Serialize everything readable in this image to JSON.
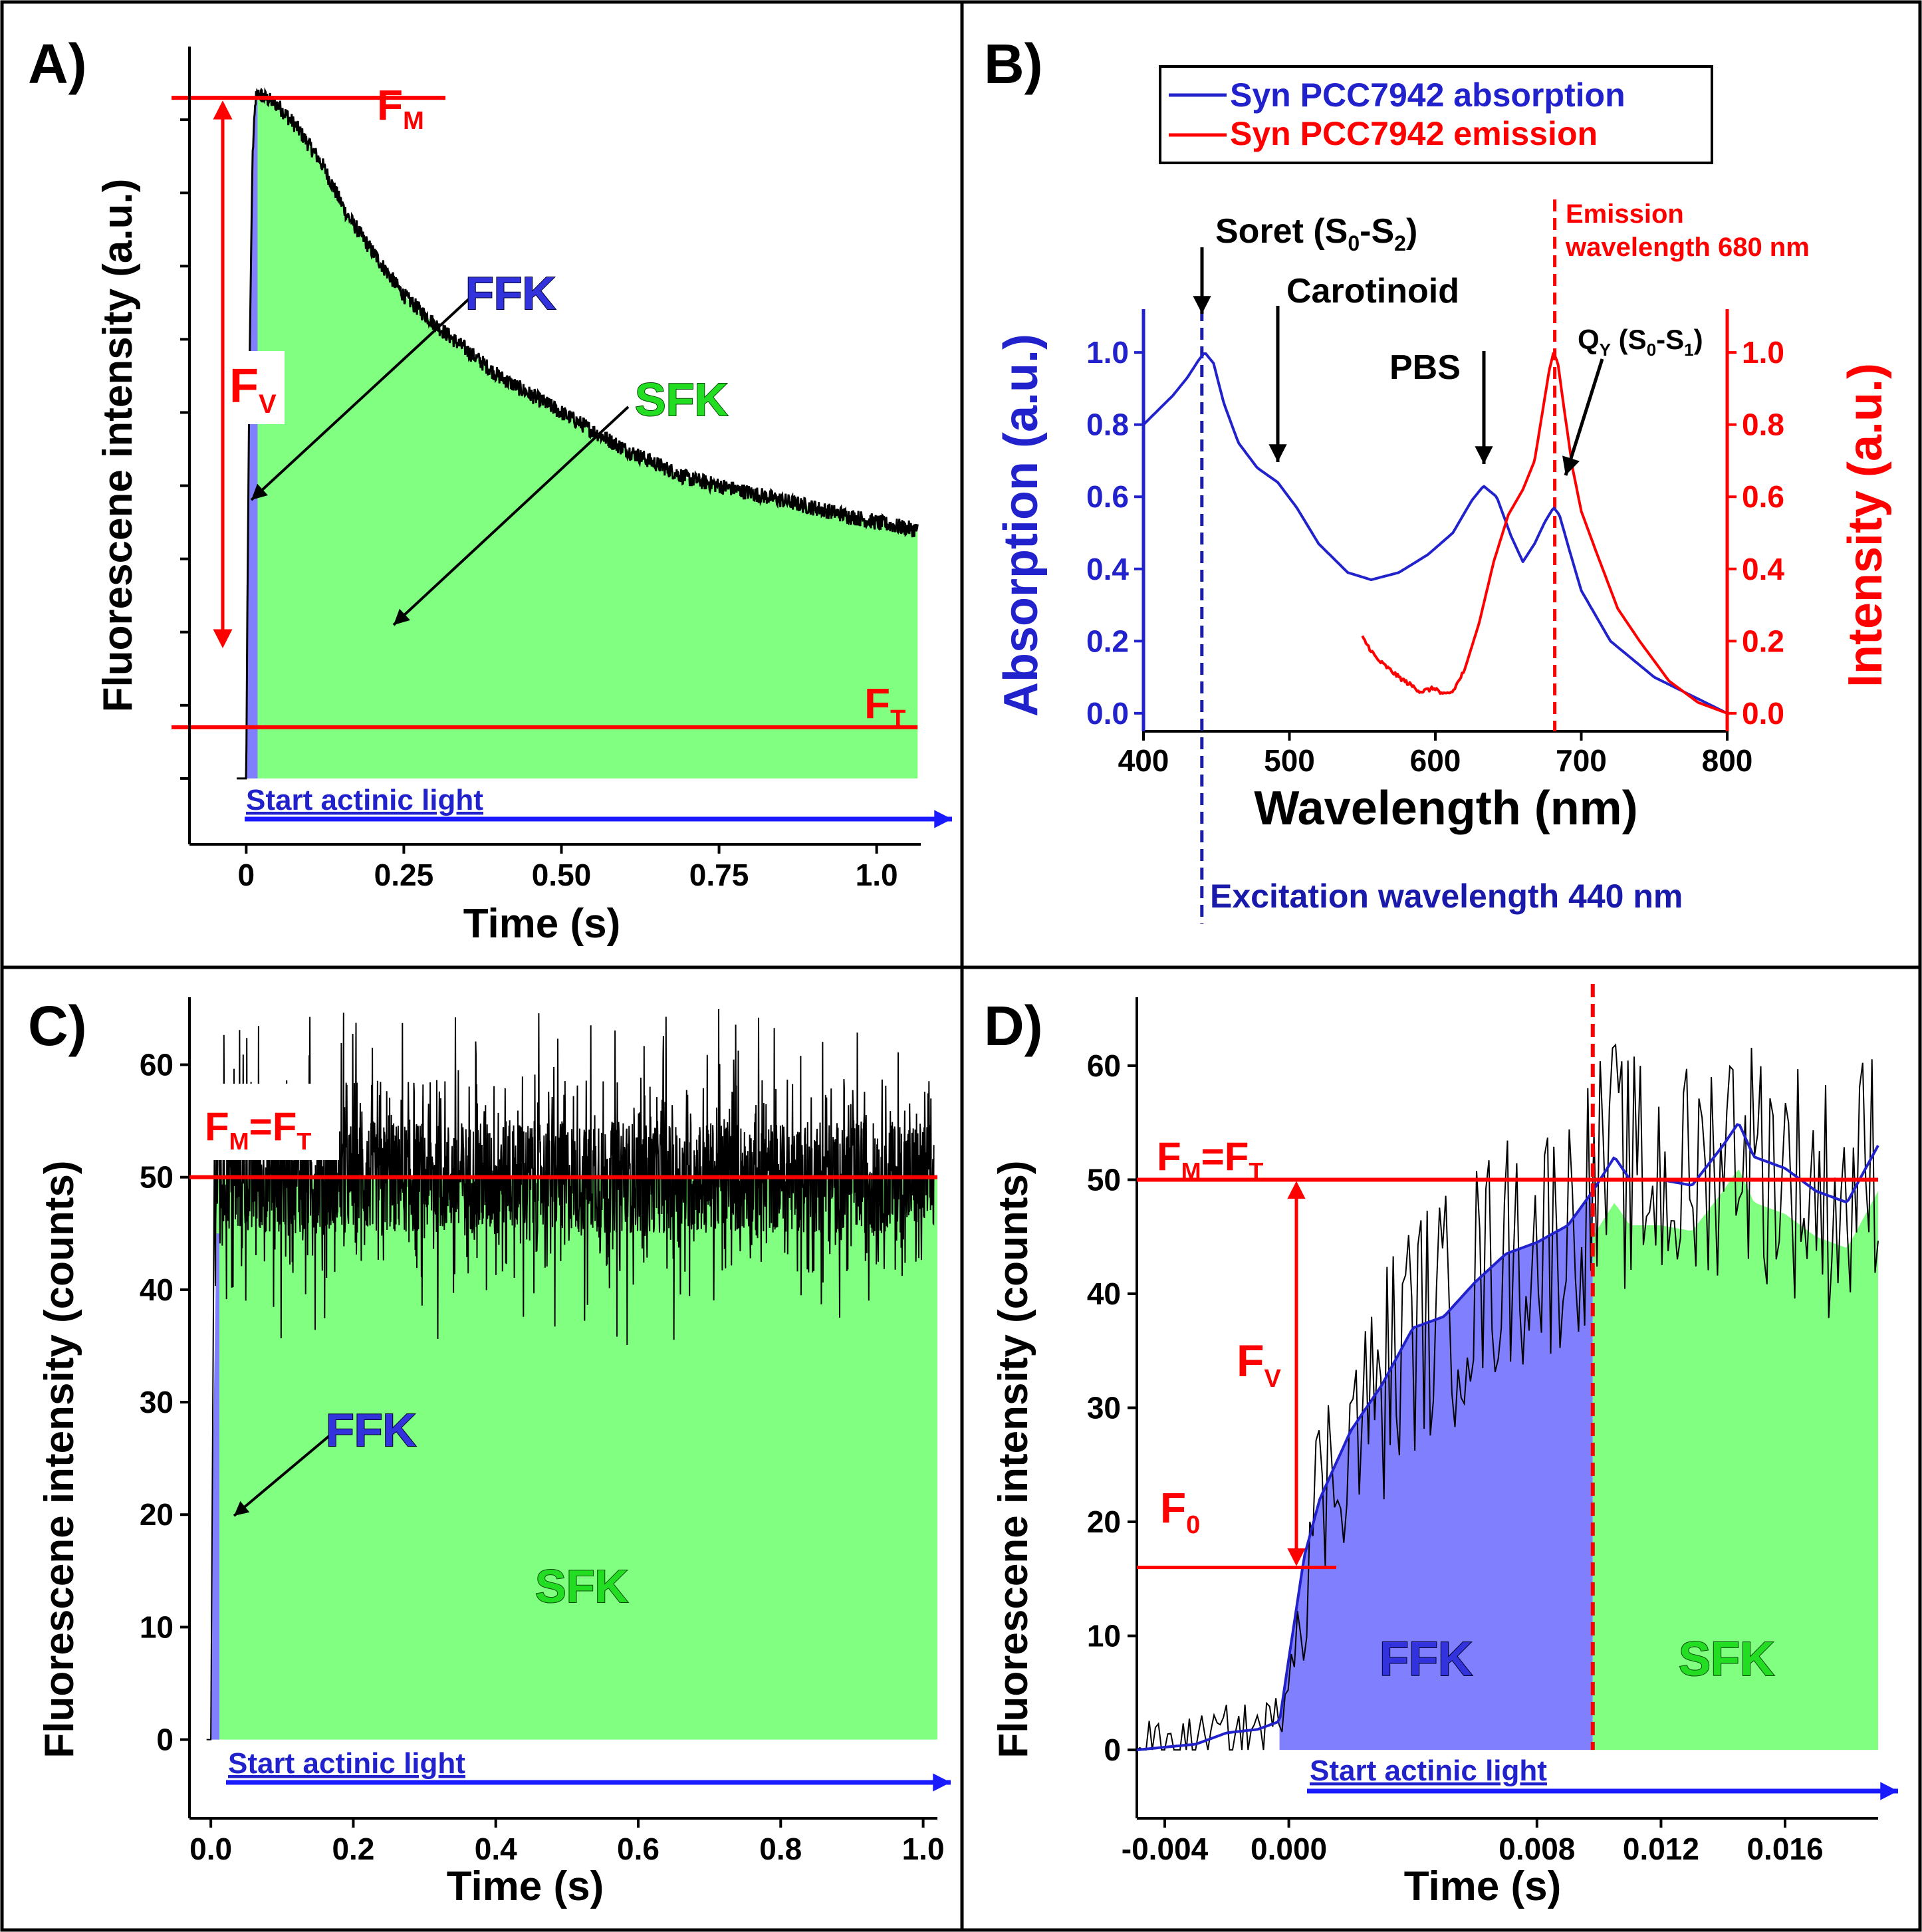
{
  "colors": {
    "red": "#ff0000",
    "blue": "#2222cc",
    "green_fill": "#80ff80",
    "ffk_fill": "#8080ff",
    "black": "#000000",
    "excite_blue": "#1a1aaa"
  },
  "chart_data": [
    {
      "panel": "A)",
      "type": "area",
      "xlabel": "Time (s)",
      "ylabel": "Fluorescene intensity (a.u.)",
      "xlim": [
        -0.09,
        1.07
      ],
      "ylim": [
        -0.09,
        1.0
      ],
      "xticks": [
        0,
        0.25,
        0.5,
        0.75,
        1.0
      ],
      "xtick_labels": [
        "0",
        "0.25",
        "0.50",
        "0.75",
        "1.0"
      ],
      "yticks_unlabeled": [
        0,
        0.1,
        0.2,
        0.3,
        0.4,
        0.5,
        0.6,
        0.7,
        0.8,
        0.9
      ],
      "series": [
        {
          "name": "fluorescence trace",
          "x": [
            -0.01,
            0,
            0.002,
            0.005,
            0.01,
            0.015,
            0.02,
            0.05,
            0.08,
            0.12,
            0.16,
            0.2,
            0.25,
            0.3,
            0.4,
            0.5,
            0.6,
            0.7,
            0.8,
            0.9,
            1.0,
            1.06
          ],
          "y": [
            0,
            0,
            0.25,
            0.55,
            0.85,
            0.93,
            0.935,
            0.92,
            0.89,
            0.84,
            0.77,
            0.72,
            0.66,
            0.62,
            0.55,
            0.5,
            0.45,
            0.41,
            0.39,
            0.37,
            0.35,
            0.34
          ]
        }
      ],
      "ffk_region": [
        0,
        0.018
      ],
      "fm_level": 0.93,
      "ft_level": 0.07,
      "labels": {
        "fm": "F",
        "fm_sub": "M",
        "ft": "F",
        "ft_sub": "T",
        "fv": "F",
        "fv_sub": "V",
        "ffk": "FFK",
        "sfk": "SFK",
        "actinic": "Start actinic light"
      }
    },
    {
      "panel": "B)",
      "type": "line",
      "xlabel": "Wavelength (nm)",
      "ylabel_left": "Absorption (a.u.)",
      "ylabel_right": "Intensity (a.u.)",
      "xlim": [
        400,
        800
      ],
      "ylim": [
        -0.05,
        1.12
      ],
      "xticks": [
        400,
        500,
        600,
        700,
        800
      ],
      "yticks": [
        0.0,
        0.2,
        0.4,
        0.6,
        0.8,
        1.0
      ],
      "ytick_labels": [
        "0.0",
        "0.2",
        "0.4",
        "0.6",
        "0.8",
        "1.0"
      ],
      "legend_position": "top",
      "series": [
        {
          "name": "Syn PCC7942 absorption",
          "color": "#2222cc",
          "x": [
            400,
            410,
            420,
            430,
            438,
            442,
            448,
            455,
            465,
            478,
            492,
            505,
            520,
            540,
            556,
            575,
            595,
            612,
            625,
            633,
            642,
            652,
            660,
            668,
            675,
            681,
            685,
            692,
            700,
            720,
            750,
            780,
            800
          ],
          "y": [
            0.8,
            0.84,
            0.88,
            0.93,
            0.98,
            1.0,
            0.97,
            0.86,
            0.75,
            0.68,
            0.64,
            0.57,
            0.47,
            0.39,
            0.37,
            0.39,
            0.44,
            0.5,
            0.59,
            0.63,
            0.6,
            0.49,
            0.42,
            0.47,
            0.53,
            0.57,
            0.55,
            0.45,
            0.34,
            0.2,
            0.1,
            0.04,
            0.0
          ]
        },
        {
          "name": "Syn PCC7942 emission",
          "color": "#ff0000",
          "x": [
            550,
            560,
            575,
            590,
            600,
            605,
            612,
            620,
            630,
            640,
            650,
            660,
            668,
            674,
            678,
            681,
            684,
            688,
            694,
            700,
            710,
            725,
            740,
            760,
            780,
            800
          ],
          "y": [
            0.21,
            0.15,
            0.1,
            0.06,
            0.07,
            0.05,
            0.06,
            0.12,
            0.25,
            0.42,
            0.55,
            0.62,
            0.7,
            0.85,
            0.95,
            1.0,
            0.97,
            0.85,
            0.68,
            0.56,
            0.45,
            0.29,
            0.2,
            0.09,
            0.03,
            0.0
          ]
        }
      ],
      "annotations": {
        "soret": "Soret (S",
        "soret_sub0": "0",
        "soret_dash": "-S",
        "soret_sub2": "2",
        "soret_close": ")",
        "carotinoid": "Carotinoid",
        "pbs": "PBS",
        "qy": "Q",
        "qy_sub": "Y",
        "qy_rest": " (S",
        "qy_sub0": "0",
        "qy_dash": "-S",
        "qy_sub1": "1",
        "qy_close": ")",
        "emission_line1": "Emission",
        "emission_line2": "wavelength 680 nm",
        "excitation": "Excitation wavelength 440 nm",
        "excitation_nm": 440,
        "emission_nm": 680
      }
    },
    {
      "panel": "C)",
      "type": "area",
      "xlabel": "Time (s)",
      "ylabel": "Fluorescene intensity (counts)",
      "xlim": [
        -0.03,
        1.02
      ],
      "ylim": [
        -7,
        66
      ],
      "xticks": [
        0.0,
        0.2,
        0.4,
        0.6,
        0.8,
        1.0
      ],
      "xtick_labels": [
        "0.0",
        "0.2",
        "0.4",
        "0.6",
        "0.8",
        "1.0"
      ],
      "yticks": [
        0,
        10,
        20,
        30,
        40,
        50,
        60
      ],
      "ytick_labels": [
        "0",
        "10",
        "20",
        "30",
        "40",
        "50",
        "60"
      ],
      "series": [
        {
          "name": "counts trace (noisy, mean level)",
          "x": [
            -0.005,
            0,
            0.002,
            0.005,
            0.01,
            1.02
          ],
          "y": [
            0,
            0,
            15,
            38,
            50,
            50
          ],
          "noise_range": [
            35,
            65
          ]
        }
      ],
      "fm_ft_level": 50,
      "labels": {
        "fm_ft": "F",
        "fm_sub": "M",
        "eq": "=F",
        "ft_sub": "T",
        "ffk": "FFK",
        "sfk": "SFK",
        "actinic": "Start actinic light"
      }
    },
    {
      "panel": "D)",
      "type": "area",
      "xlabel": "Time (s)",
      "ylabel": "Fluorescene intensity (counts)",
      "xlim": [
        -0.0049,
        0.019
      ],
      "ylim": [
        -6,
        66
      ],
      "xticks": [
        -0.004,
        0.0,
        0.008,
        0.012,
        0.016
      ],
      "xtick_labels": [
        "-0.004",
        "0.000",
        "0.008",
        "0.012",
        "0.016"
      ],
      "yticks": [
        0,
        10,
        20,
        30,
        40,
        50,
        60
      ],
      "ytick_labels": [
        "0",
        "10",
        "20",
        "30",
        "40",
        "50",
        "60"
      ],
      "series": [
        {
          "name": "smoothed (blue)",
          "x": [
            -0.0049,
            -0.003,
            -0.002,
            -0.001,
            -0.0003,
            0.0,
            0.0005,
            0.001,
            0.002,
            0.003,
            0.004,
            0.005,
            0.006,
            0.007,
            0.008,
            0.009,
            0.0098,
            0.0105,
            0.011,
            0.012,
            0.013,
            0.014,
            0.0145,
            0.015,
            0.016,
            0.017,
            0.018,
            0.019
          ],
          "y": [
            0,
            0.5,
            1.5,
            1.8,
            2.5,
            8,
            17,
            22,
            28,
            32,
            37,
            38,
            41,
            43.5,
            44.5,
            46,
            49,
            52,
            50,
            50,
            49.5,
            53,
            55,
            52,
            51,
            49,
            48,
            53
          ]
        }
      ],
      "ffk_region": [
        -0.0003,
        0.0098
      ],
      "fm_ft_level": 50,
      "f0_level": 16,
      "labels": {
        "fm_ft": "F",
        "fm_sub": "M",
        "eq": "=F",
        "ft_sub": "T",
        "fv": "F",
        "fv_sub": "V",
        "f0": "F",
        "f0_sub": "0",
        "ffk": "FFK",
        "sfk": "SFK",
        "actinic": "Start actinic light"
      }
    }
  ]
}
